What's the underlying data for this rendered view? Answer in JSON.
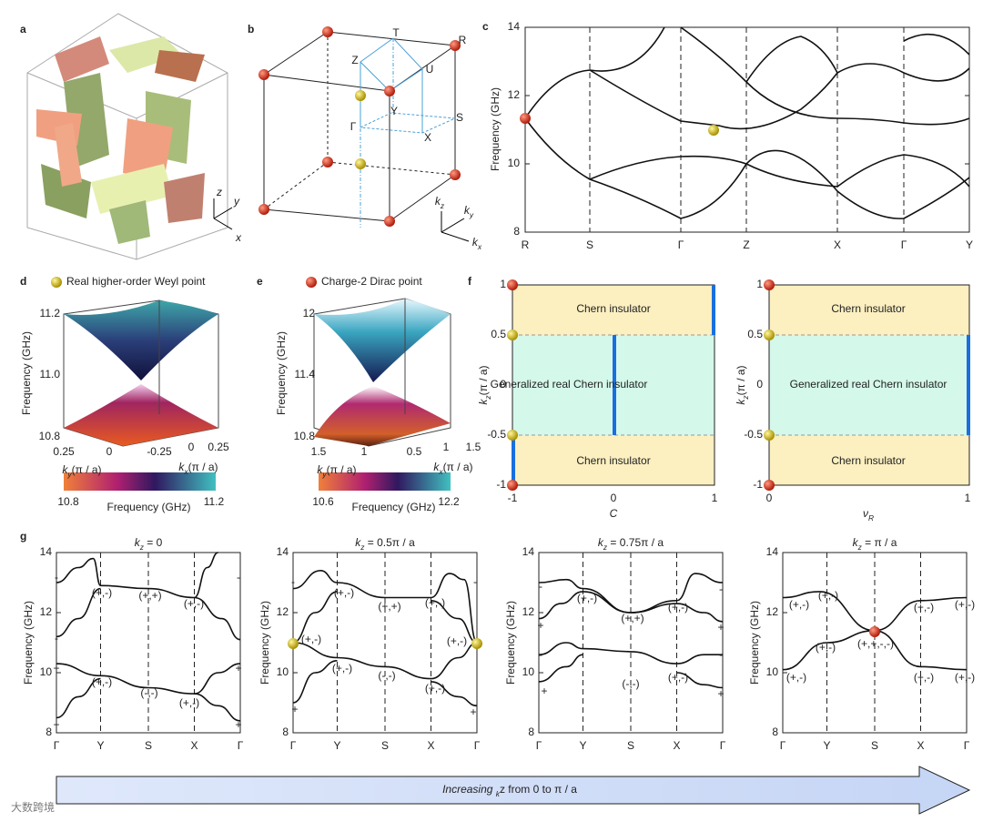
{
  "a": {
    "label": "a",
    "axes": [
      "z",
      "y",
      "x"
    ]
  },
  "b": {
    "label": "b",
    "points": [
      "T",
      "R",
      "Z",
      "U",
      "Y",
      "S",
      "Γ",
      "X"
    ],
    "axes": [
      [
        "k",
        "z"
      ],
      [
        "k",
        "y"
      ],
      [
        "k",
        "x"
      ]
    ]
  },
  "c": {
    "label": "c",
    "ylabel": "Frequency (GHz)",
    "yticks": [
      "14",
      "12",
      "10",
      "8"
    ],
    "xticks": [
      "R",
      "S",
      "Γ",
      "Z",
      "X",
      "Γ",
      "Y"
    ]
  },
  "d": {
    "label": "d",
    "legend": "Real higher-order Weyl point",
    "zlabel": "Frequency (GHz)",
    "zticks": [
      "11.2",
      "11.0",
      "10.8"
    ],
    "yticks": [
      "0.25",
      "0",
      "-0.25"
    ],
    "xticks": [
      "0",
      "0.25"
    ],
    "ylabel": [
      "k",
      "y",
      "(π / a)"
    ],
    "xlabel": [
      "k",
      "x",
      "(π / a)"
    ],
    "colorbar": {
      "min": "10.8",
      "max": "11.2",
      "label": "Frequency (GHz)"
    }
  },
  "e": {
    "label": "e",
    "legend": "Charge-2 Dirac point",
    "zlabel": "Frequency (GHz)",
    "zticks": [
      "12",
      "11.4",
      "10.8"
    ],
    "yticks": [
      "1.5",
      "1",
      "0.5"
    ],
    "xticks": [
      "1",
      "1.5"
    ],
    "ylabel": [
      "k",
      "y",
      "(π / a)"
    ],
    "xlabel": [
      "k",
      "x",
      "(π / a)"
    ],
    "colorbar": {
      "min": "10.6",
      "max": "12.2",
      "label": "Frequency (GHz)"
    }
  },
  "f": {
    "label": "f",
    "ylabel": [
      "k",
      "z",
      "(π / a)"
    ],
    "yticks": [
      "1",
      "0.5",
      "0",
      "-0.5",
      "-1"
    ],
    "left": {
      "xticks": [
        "-1",
        "0",
        "1"
      ],
      "xlabel": "C"
    },
    "right": {
      "xticks": [
        "0",
        "1"
      ],
      "xlabel": [
        "ν",
        "R"
      ]
    },
    "regions": [
      "Chern insulator",
      "Generalized real Chern insulator",
      "Chern insulator"
    ]
  },
  "g": {
    "label": "g",
    "ylabel": "Frequency (GHz)",
    "yticks": [
      "14",
      "12",
      "10",
      "8"
    ],
    "xticks": [
      "Γ",
      "Y",
      "S",
      "X",
      "Γ"
    ],
    "plots": [
      {
        "title": [
          "k",
          "z",
          " = 0"
        ],
        "parities": [
          "-",
          "-",
          "(+,-)",
          "(+,+)",
          "(+,-)",
          "-",
          "-",
          "+",
          "+",
          "(+,-)",
          "(-,-)",
          "(+,-)",
          "+",
          "+"
        ]
      },
      {
        "title": [
          "k",
          "z",
          " = 0.5π / a"
        ],
        "parities": [
          "-",
          "(+,-)",
          "(+,+)",
          "(+,-)",
          "-",
          "(+,-)",
          "(+,-)",
          "(+,-)",
          "(-,-)",
          "(+,-)",
          "+",
          "+"
        ]
      },
      {
        "title": [
          "k",
          "z",
          " = 0.75π / a"
        ],
        "parities": [
          "-",
          "(+,-)",
          "(+,+)",
          "(+,-)",
          "-",
          "+",
          "+",
          "-",
          "(-,-)",
          "(+,-)",
          "-",
          "+",
          "+"
        ]
      },
      {
        "title": [
          "k",
          "z",
          " = π / a"
        ],
        "parities": [
          "(+,-)",
          "(+,-)",
          "(+,-)",
          "(+,-)",
          "(+,-)",
          "(+,+,-,-)",
          "(+,-)",
          "(+,-)",
          "(+,-)"
        ]
      }
    ]
  },
  "arrow": [
    "Increasing ",
    "k",
    "z",
    " from 0 to π / a"
  ],
  "watermark": "大数跨境"
}
